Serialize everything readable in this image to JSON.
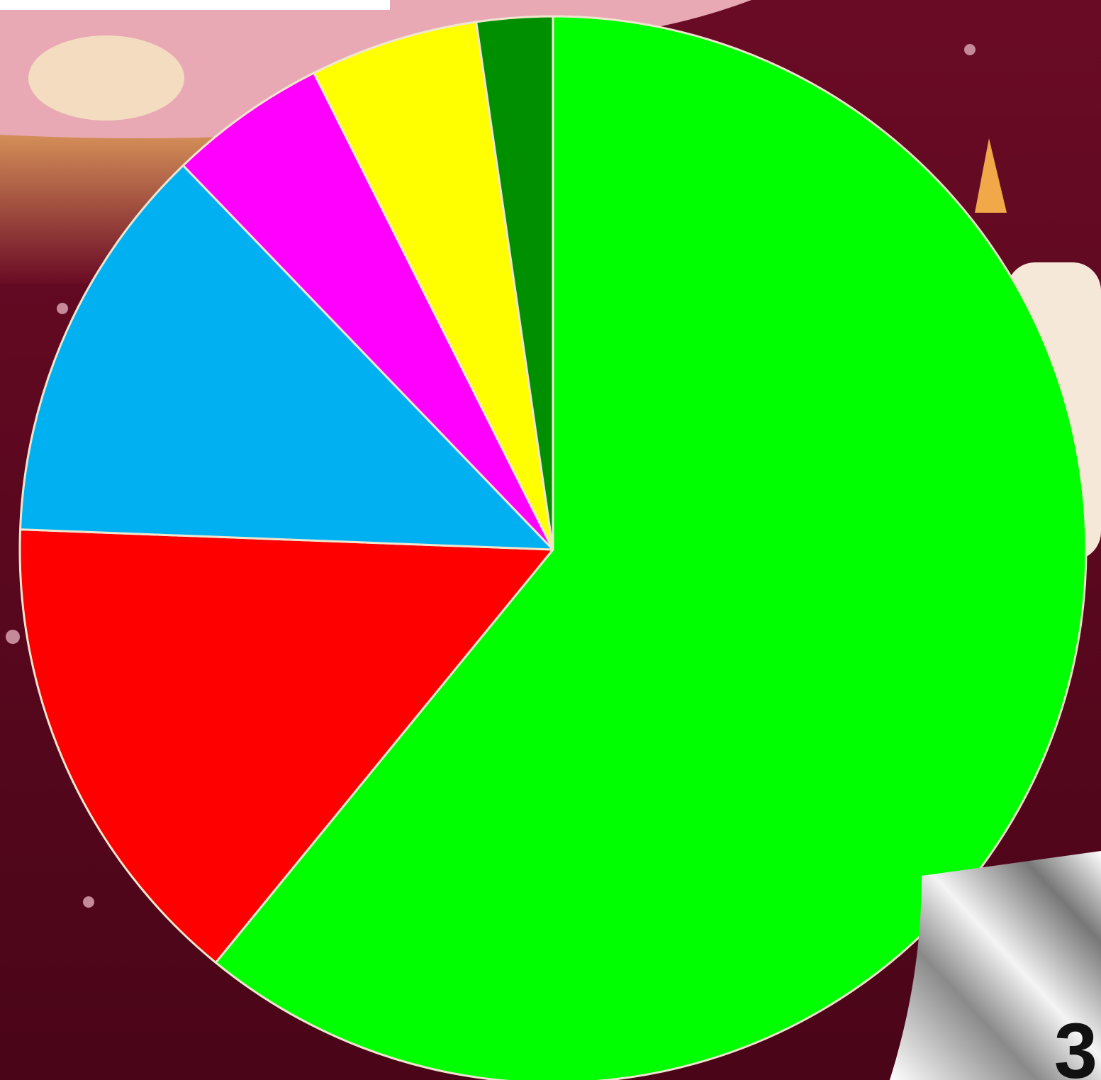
{
  "chart_data": {
    "type": "pie",
    "start_angle": 0,
    "direction": "clockwise",
    "values": [
      60.9,
      14.7,
      12.2,
      4.8,
      5.1,
      2.3
    ],
    "colors": [
      "#00ff00",
      "#ff0000",
      "#00b0f0",
      "#ff00ff",
      "#ffff00",
      "#008f00"
    ]
  },
  "page_number": "3"
}
